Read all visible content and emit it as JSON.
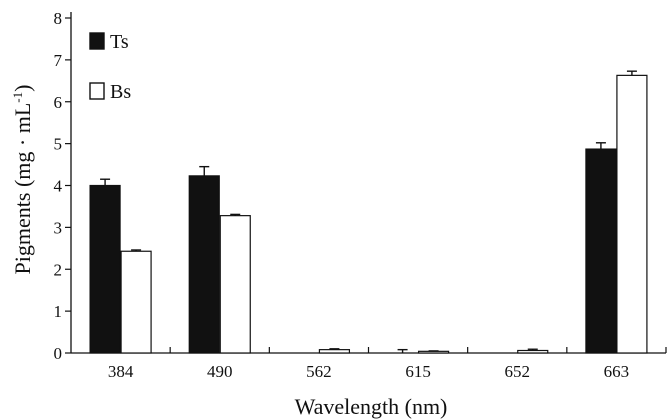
{
  "chart_data": {
    "type": "bar",
    "categories": [
      "384",
      "490",
      "562",
      "615",
      "652",
      "663"
    ],
    "series": [
      {
        "name": "Ts",
        "values": [
          4.0,
          4.23,
          0.0,
          0.0,
          0.0,
          4.87
        ],
        "errors": [
          0.15,
          0.22,
          0.0,
          0.08,
          0.0,
          0.15
        ],
        "color": "#111111"
      },
      {
        "name": "Bs",
        "values": [
          2.43,
          3.28,
          0.08,
          0.04,
          0.06,
          6.63
        ],
        "errors": [
          0.03,
          0.03,
          0.02,
          0.01,
          0.03,
          0.1
        ],
        "color": "#ffffff"
      }
    ],
    "xlabel": "Wavelength (nm)",
    "ylabel": "Pigments (mg · mL",
    "ylabel_sup": "-1",
    "ylabel_close": ")",
    "ylim": [
      0,
      8
    ],
    "yticks": [
      0,
      1,
      2,
      3,
      4,
      5,
      6,
      7,
      8
    ],
    "grid": false,
    "legend_position": "top-left"
  }
}
